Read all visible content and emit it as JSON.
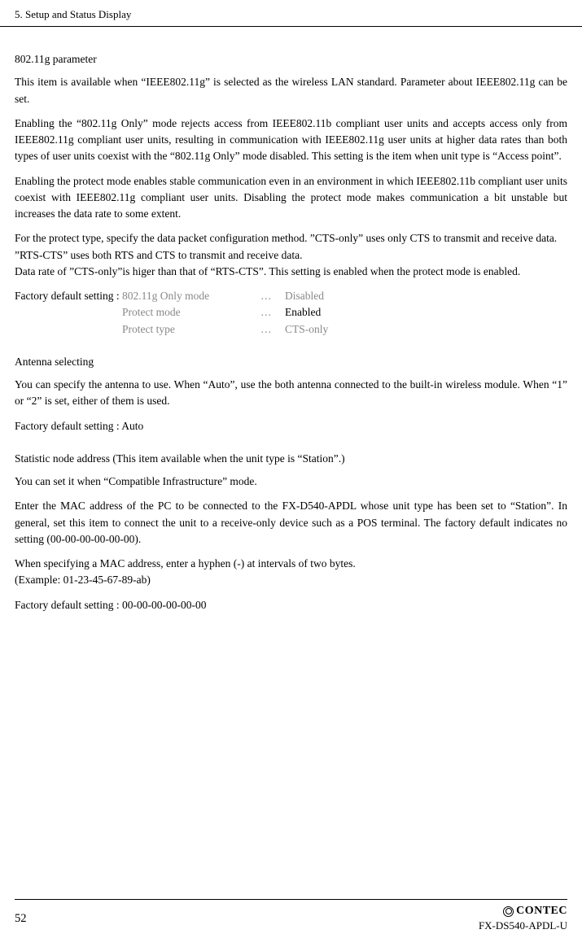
{
  "header": {
    "chapter": "5. Setup and Status Display"
  },
  "section1": {
    "title": "802.11g parameter",
    "p1": "This item is available when “IEEE802.11g” is selected as the wireless LAN standard.  Parameter about IEEE802.11g can be set.",
    "p2": "Enabling the “802.11g Only” mode rejects access from IEEE802.11b compliant user units and accepts access only from IEEE802.11g compliant user units, resulting in communication with IEEE802.11g user units at higher data rates than both types of user units coexist with the “802.11g Only” mode disabled.  This setting is the item when unit type is “Access point”.",
    "p3": "Enabling the protect mode enables stable communication even in an environment in which IEEE802.11b compliant user units coexist with IEEE802.11g compliant user units.  Disabling the protect mode makes communication a bit unstable but increases the data rate to some extent.",
    "p4": "For the protect type, specify the data packet configuration method.  ”CTS-only” uses only CTS to transmit and receive data.  ”RTS-CTS” uses both RTS and CTS to transmit and receive data.",
    "p5": "Data rate of ”CTS-only”is higer than that of “RTS-CTS”.  This setting is enabled when the protect mode is enabled.",
    "factory_label": "Factory default setting : ",
    "defaults": {
      "row1_setting": "802.11g Only mode",
      "row1_dots": "…",
      "row1_value": "Disabled",
      "row2_setting": "Protect mode",
      "row2_dots": "…",
      "row2_value": "Enabled",
      "row3_setting": "Protect type",
      "row3_dots": "…",
      "row3_value": "CTS-only"
    }
  },
  "section2": {
    "title": "Antenna selecting",
    "p1": "You can specify the antenna to use.  When “Auto”, use the both antenna connected to the built-in wireless module.  When “1” or “2” is set, either of them is used.",
    "p2": "Factory default setting : Auto"
  },
  "section3": {
    "title": "Statistic node address (This item available when the unit type is “Station”.)",
    "p1": "You can set it when “Compatible Infrastructure” mode.",
    "p2": "Enter the MAC address of the PC to be connected to the FX-D540-APDL whose unit type has been set to “Station”.  In general, set this item to connect the unit to a receive-only device such as a POS terminal.  The factory default indicates no setting (00-00-00-00-00-00).",
    "p3": "When specifying a MAC address, enter a hyphen (-) at intervals of two bytes.",
    "p4": "(Example: 01-23-45-67-89-ab)",
    "p5": "Factory default setting : 00-00-00-00-00-00"
  },
  "footer": {
    "page_number": "52",
    "brand": "CONTEC",
    "product": "FX-DS540-APDL-U"
  },
  "colors": {
    "text": "#000000",
    "muted": "#888888",
    "background": "#ffffff",
    "line": "#000000"
  }
}
